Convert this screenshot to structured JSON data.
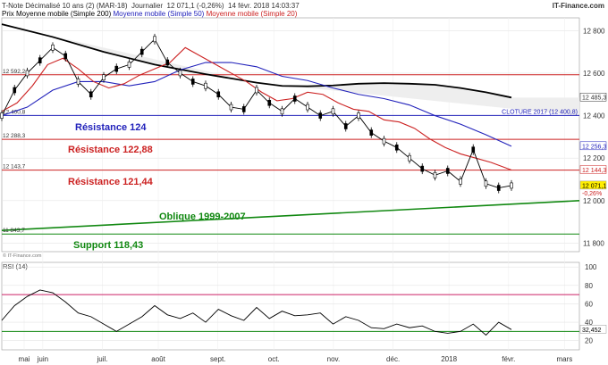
{
  "header": {
    "title": "T-Note Décimalisé 10 ans (2) (MAR-18)",
    "period": "Journalier",
    "quote": "12 071,1 (-0,26%)",
    "datetime": "14 févr. 2018 14:03:37",
    "brand": "IT-Finance.com",
    "legend": [
      {
        "label": "Prix Moyenne mobile (Simple 200)",
        "color": "#000000"
      },
      {
        "label": "Moyenne mobile (Simple 50)",
        "color": "#2222bb"
      },
      {
        "label": "Moyenne mobile (Simple 20)",
        "color": "#cc2222"
      }
    ]
  },
  "rsi_panel": {
    "copyright": "© IT-Finance.com",
    "label": "RSI (14)"
  },
  "colors": {
    "price": "#000000",
    "ma200": "#000000",
    "ma50": "#2222bb",
    "ma20": "#cc2222",
    "resistance": "#cc2222",
    "cloture": "#2222bb",
    "support": "#118811",
    "rsi_band": "#cc2266",
    "rsi_line": "#000000",
    "value_tag": "#ffee00"
  },
  "chart_data": [
    {
      "type": "line",
      "panel": "price",
      "x_ticks": [
        "mai",
        "juin",
        "juil.",
        "août",
        "sept.",
        "oct.",
        "nov.",
        "déc.",
        "2018",
        "févr.",
        "mars"
      ],
      "y_ticks": [
        "12 800",
        "12 600",
        "12 400",
        "12 200",
        "12 000",
        "11 800"
      ],
      "ylim": [
        11760,
        12860
      ],
      "x_range": [
        0,
        200
      ],
      "series": [
        {
          "name": "Moyenne mobile (Simple 200)",
          "role": "ma200",
          "x": [
            0,
            20,
            40,
            60,
            80,
            100,
            110,
            120,
            130,
            140,
            150,
            160,
            170,
            180,
            190,
            200
          ],
          "y": [
            12830,
            12770,
            12700,
            12640,
            12595,
            12555,
            12540,
            12538,
            12542,
            12550,
            12553,
            12550,
            12545,
            12530,
            12510,
            12485
          ]
        },
        {
          "name": "Moyenne mobile (Simple 50)",
          "role": "ma50",
          "x": [
            0,
            10,
            20,
            30,
            40,
            50,
            60,
            70,
            80,
            90,
            100,
            110,
            120,
            130,
            140,
            150,
            160,
            170,
            180,
            190,
            200
          ],
          "y": [
            12400,
            12440,
            12520,
            12560,
            12560,
            12540,
            12560,
            12615,
            12650,
            12650,
            12630,
            12585,
            12565,
            12530,
            12500,
            12480,
            12450,
            12400,
            12360,
            12310,
            12256
          ]
        },
        {
          "name": "Moyenne mobile (Simple 20)",
          "role": "ma20",
          "x": [
            0,
            6,
            12,
            18,
            24,
            30,
            36,
            42,
            48,
            54,
            60,
            66,
            72,
            78,
            84,
            90,
            96,
            102,
            108,
            114,
            120,
            126,
            132,
            138,
            144,
            150,
            156,
            162,
            168,
            174,
            180,
            186,
            192,
            200
          ],
          "y": [
            12420,
            12460,
            12540,
            12640,
            12670,
            12620,
            12560,
            12530,
            12550,
            12590,
            12620,
            12650,
            12720,
            12680,
            12640,
            12600,
            12560,
            12510,
            12470,
            12480,
            12510,
            12500,
            12460,
            12430,
            12420,
            12380,
            12370,
            12340,
            12290,
            12250,
            12220,
            12200,
            12180,
            12144
          ]
        },
        {
          "name": "Prix",
          "role": "price",
          "x": [
            0,
            5,
            10,
            15,
            20,
            25,
            30,
            35,
            40,
            45,
            50,
            55,
            60,
            65,
            70,
            75,
            80,
            85,
            90,
            95,
            100,
            105,
            110,
            115,
            120,
            125,
            130,
            135,
            140,
            145,
            150,
            155,
            160,
            165,
            170,
            175,
            180,
            185,
            190,
            195,
            200
          ],
          "y": [
            12400,
            12520,
            12600,
            12660,
            12720,
            12680,
            12560,
            12500,
            12580,
            12620,
            12640,
            12700,
            12760,
            12650,
            12600,
            12560,
            12540,
            12500,
            12440,
            12430,
            12520,
            12460,
            12420,
            12480,
            12440,
            12400,
            12420,
            12350,
            12400,
            12320,
            12280,
            12250,
            12200,
            12150,
            12120,
            12140,
            12090,
            12240,
            12080,
            12060,
            12071
          ]
        }
      ],
      "levels": [
        {
          "value": 12592.2,
          "label": "12 592,2",
          "role": "resistance"
        },
        {
          "value": 12400.8,
          "label": "12 400,8",
          "role": "cloture",
          "annotation": "CLOTURE 2017 (12 400,8)"
        },
        {
          "value": 12288.3,
          "label": "12 288,3",
          "role": "resistance"
        },
        {
          "value": 12143.7,
          "label": "12 143,7",
          "role": "resistance"
        },
        {
          "value": 11843,
          "label": "",
          "role": "support"
        }
      ],
      "trendline": {
        "x": [
          0,
          270
        ],
        "y": [
          11860,
          12000
        ],
        "start_label": "11 843,7",
        "role": "support"
      },
      "annotations": [
        {
          "text": "Résistance 124",
          "role": "cloture"
        },
        {
          "text": "Résistance 122,88",
          "role": "resistance"
        },
        {
          "text": "Résistance 121,44",
          "role": "resistance"
        },
        {
          "text": "Oblique 1999-2007",
          "role": "support"
        },
        {
          "text": "Support 118,43",
          "role": "support"
        }
      ],
      "right_tags": [
        {
          "value": 12485.3,
          "label": "12 485,3"
        },
        {
          "value": 12256.3,
          "label": "12 256,3",
          "role": "ma50"
        },
        {
          "value": 12144.3,
          "label": "12 144,3",
          "role": "ma20"
        },
        {
          "value": 12071.1,
          "label": "12 071,1",
          "sublabel": "-0,26%",
          "role": "last"
        }
      ]
    },
    {
      "type": "line",
      "panel": "rsi",
      "y_ticks": [
        "100",
        "80",
        "60",
        "40",
        "20"
      ],
      "ylim": [
        10,
        105
      ],
      "bands": [
        70,
        30
      ],
      "series": [
        {
          "name": "RSI (14)",
          "x": [
            0,
            5,
            10,
            15,
            20,
            25,
            30,
            35,
            40,
            45,
            50,
            55,
            60,
            65,
            70,
            75,
            80,
            85,
            90,
            95,
            100,
            105,
            110,
            115,
            120,
            125,
            130,
            135,
            140,
            145,
            150,
            155,
            160,
            165,
            170,
            175,
            180,
            185,
            190,
            195,
            200
          ],
          "y": [
            42,
            58,
            68,
            75,
            72,
            62,
            50,
            46,
            38,
            30,
            38,
            46,
            58,
            48,
            44,
            50,
            40,
            54,
            47,
            42,
            56,
            44,
            52,
            47,
            48,
            50,
            38,
            46,
            42,
            34,
            33,
            38,
            34,
            36,
            30,
            28,
            30,
            38,
            26,
            40,
            32
          ]
        }
      ],
      "last_tag": "32,452"
    }
  ]
}
